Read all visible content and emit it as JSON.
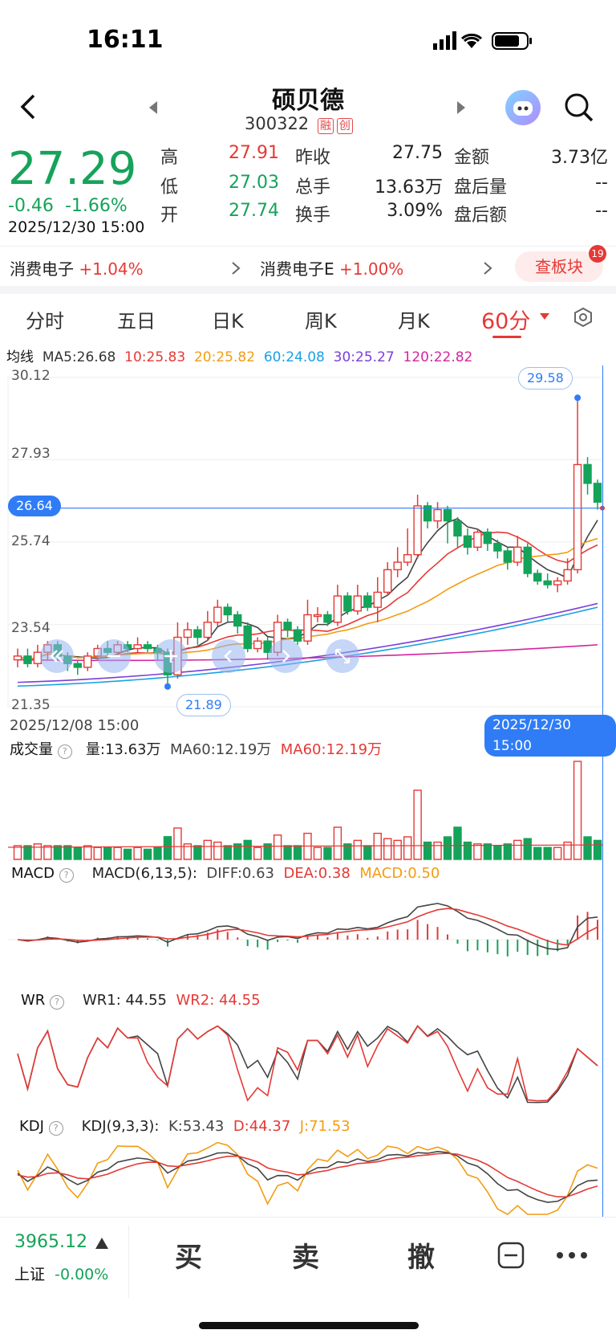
{
  "status": {
    "time": "16:11"
  },
  "header": {
    "title": "硕贝德",
    "code": "300322",
    "tags": [
      "融",
      "创"
    ]
  },
  "quote": {
    "price": "27.29",
    "change": "-0.46",
    "change_pct": "-1.66%",
    "datetime": "2025/12/30 15:00",
    "fields": [
      {
        "label": "高",
        "value": "27.91",
        "color": "#e53935"
      },
      {
        "label": "低",
        "value": "27.03",
        "color": "#15a35a"
      },
      {
        "label": "开",
        "value": "27.74",
        "color": "#15a35a"
      },
      {
        "label": "昨收",
        "value": "27.75",
        "color": "#222"
      },
      {
        "label": "总手",
        "value": "13.63万",
        "color": "#222"
      },
      {
        "label": "换手",
        "value": "3.09%",
        "color": "#222"
      },
      {
        "label": "金额",
        "value": "3.73亿",
        "color": "#222"
      },
      {
        "label": "盘后量",
        "value": "--",
        "color": "#222"
      },
      {
        "label": "盘后额",
        "value": "--",
        "color": "#222"
      }
    ]
  },
  "sectors": {
    "s1_name": "消费电子",
    "s1_chg": "+1.04%",
    "s2_name": "消费电子E",
    "s2_chg": "+1.00%",
    "btn": "查板块",
    "badge": "19"
  },
  "tabs": [
    "分时",
    "五日",
    "日K",
    "周K",
    "月K",
    "60分"
  ],
  "active_tab": "60分",
  "ma": {
    "label": "均线",
    "ma5": "MA5:26.68",
    "ma10": "10:25.83",
    "ma20": "20:25.82",
    "ma60": "60:24.08",
    "ma30": "30:25.27",
    "ma120": "120:22.82"
  },
  "price_axis": [
    "30.12",
    "27.93",
    "25.74",
    "23.54",
    "21.35"
  ],
  "crosshair": {
    "price": "26.64",
    "time": "2025/12/30 15:00"
  },
  "markers": {
    "high": "29.58",
    "low": "21.89"
  },
  "x_start": "2025/12/08 15:00",
  "volume": {
    "title": "成交量",
    "vol": "量:13.63万",
    "ma60_gray": "MA60:12.19万",
    "ma60_red": "MA60:12.19万"
  },
  "macd": {
    "title": "MACD",
    "params": "MACD(6,13,5):",
    "diff": "DIFF:0.63",
    "dea": "DEA:0.38",
    "macd": "MACD:0.50"
  },
  "wr": {
    "title": "WR",
    "wr1": "WR1: 44.55",
    "wr2": "WR2: 44.55"
  },
  "kdj": {
    "title": "KDJ",
    "params": "KDJ(9,3,3):",
    "k": "K:53.43",
    "d": "D:44.37",
    "j": "J:71.53"
  },
  "bottom": {
    "index_value": "3965.12",
    "index_name": "上证",
    "index_chg": "-0.00%",
    "buy": "买",
    "sell": "卖",
    "cancel": "撤"
  },
  "colors": {
    "up": "#e53935",
    "down": "#15a35a",
    "accent": "#2f7cf6"
  },
  "chart_data": {
    "type": "candlestick",
    "title": "",
    "ylim": [
      21.35,
      30.12
    ],
    "ticks": [
      "30.12",
      "27.93",
      "25.74",
      "23.54",
      "21.35"
    ],
    "candles": [
      [
        22.6,
        22.7,
        22.9,
        22.4
      ],
      [
        22.7,
        22.5,
        22.9,
        22.4
      ],
      [
        22.5,
        22.8,
        23.0,
        22.4
      ],
      [
        22.8,
        23.0,
        23.1,
        22.6
      ],
      [
        23.0,
        22.7,
        23.1,
        22.6
      ],
      [
        22.7,
        22.5,
        22.8,
        22.3
      ],
      [
        22.5,
        22.4,
        22.6,
        22.2
      ],
      [
        22.4,
        22.7,
        22.8,
        22.3
      ],
      [
        22.7,
        22.9,
        23.0,
        22.6
      ],
      [
        22.9,
        22.8,
        23.1,
        22.7
      ],
      [
        22.8,
        23.0,
        23.1,
        22.7
      ],
      [
        23.0,
        22.9,
        23.1,
        22.8
      ],
      [
        22.9,
        23.0,
        23.2,
        22.8
      ],
      [
        23.0,
        22.9,
        23.1,
        22.8
      ],
      [
        22.9,
        22.8,
        23.0,
        22.6
      ],
      [
        22.8,
        22.2,
        22.9,
        21.89
      ],
      [
        22.2,
        23.2,
        23.6,
        22.1
      ],
      [
        23.2,
        23.4,
        23.6,
        23.0
      ],
      [
        23.4,
        23.2,
        23.5,
        23.0
      ],
      [
        23.2,
        23.6,
        23.9,
        23.1
      ],
      [
        23.6,
        24.0,
        24.2,
        23.5
      ],
      [
        24.0,
        23.8,
        24.1,
        23.6
      ],
      [
        23.8,
        23.5,
        23.9,
        23.3
      ],
      [
        23.5,
        22.9,
        23.6,
        22.8
      ],
      [
        22.9,
        23.1,
        23.2,
        22.8
      ],
      [
        23.1,
        22.8,
        23.2,
        22.6
      ],
      [
        22.8,
        23.6,
        23.8,
        22.7
      ],
      [
        23.6,
        23.4,
        23.7,
        23.2
      ],
      [
        23.4,
        23.1,
        23.5,
        23.0
      ],
      [
        23.1,
        23.8,
        24.2,
        23.0
      ],
      [
        23.8,
        23.8,
        24.0,
        23.6
      ],
      [
        23.8,
        23.6,
        23.9,
        23.5
      ],
      [
        23.6,
        24.3,
        24.6,
        23.5
      ],
      [
        24.3,
        23.9,
        24.4,
        23.8
      ],
      [
        23.9,
        24.3,
        24.6,
        23.8
      ],
      [
        24.3,
        24.0,
        24.4,
        23.9
      ],
      [
        24.0,
        24.4,
        24.8,
        23.6
      ],
      [
        24.4,
        25.0,
        25.2,
        24.3
      ],
      [
        25.0,
        25.2,
        25.6,
        24.8
      ],
      [
        25.2,
        25.4,
        26.1,
        25.1
      ],
      [
        25.4,
        26.7,
        27.0,
        25.3
      ],
      [
        26.7,
        26.3,
        26.8,
        26.1
      ],
      [
        26.3,
        26.6,
        26.8,
        26.1
      ],
      [
        26.6,
        26.3,
        26.7,
        25.7
      ],
      [
        26.3,
        25.9,
        26.4,
        25.6
      ],
      [
        25.9,
        25.6,
        26.1,
        25.4
      ],
      [
        25.6,
        26.0,
        26.1,
        25.5
      ],
      [
        26.0,
        25.7,
        26.1,
        25.5
      ],
      [
        25.7,
        25.5,
        25.8,
        25.3
      ],
      [
        25.5,
        25.2,
        25.6,
        25.0
      ],
      [
        25.2,
        25.6,
        25.9,
        25.1
      ],
      [
        25.6,
        24.9,
        25.7,
        24.8
      ],
      [
        24.9,
        24.7,
        25.0,
        24.6
      ],
      [
        24.7,
        24.6,
        24.9,
        24.5
      ],
      [
        24.6,
        24.7,
        24.8,
        24.4
      ],
      [
        24.7,
        25.0,
        25.3,
        24.6
      ],
      [
        25.0,
        27.8,
        29.58,
        24.9
      ],
      [
        27.8,
        27.3,
        28.0,
        27.0
      ],
      [
        27.3,
        26.8,
        27.4,
        26.6
      ]
    ]
  }
}
